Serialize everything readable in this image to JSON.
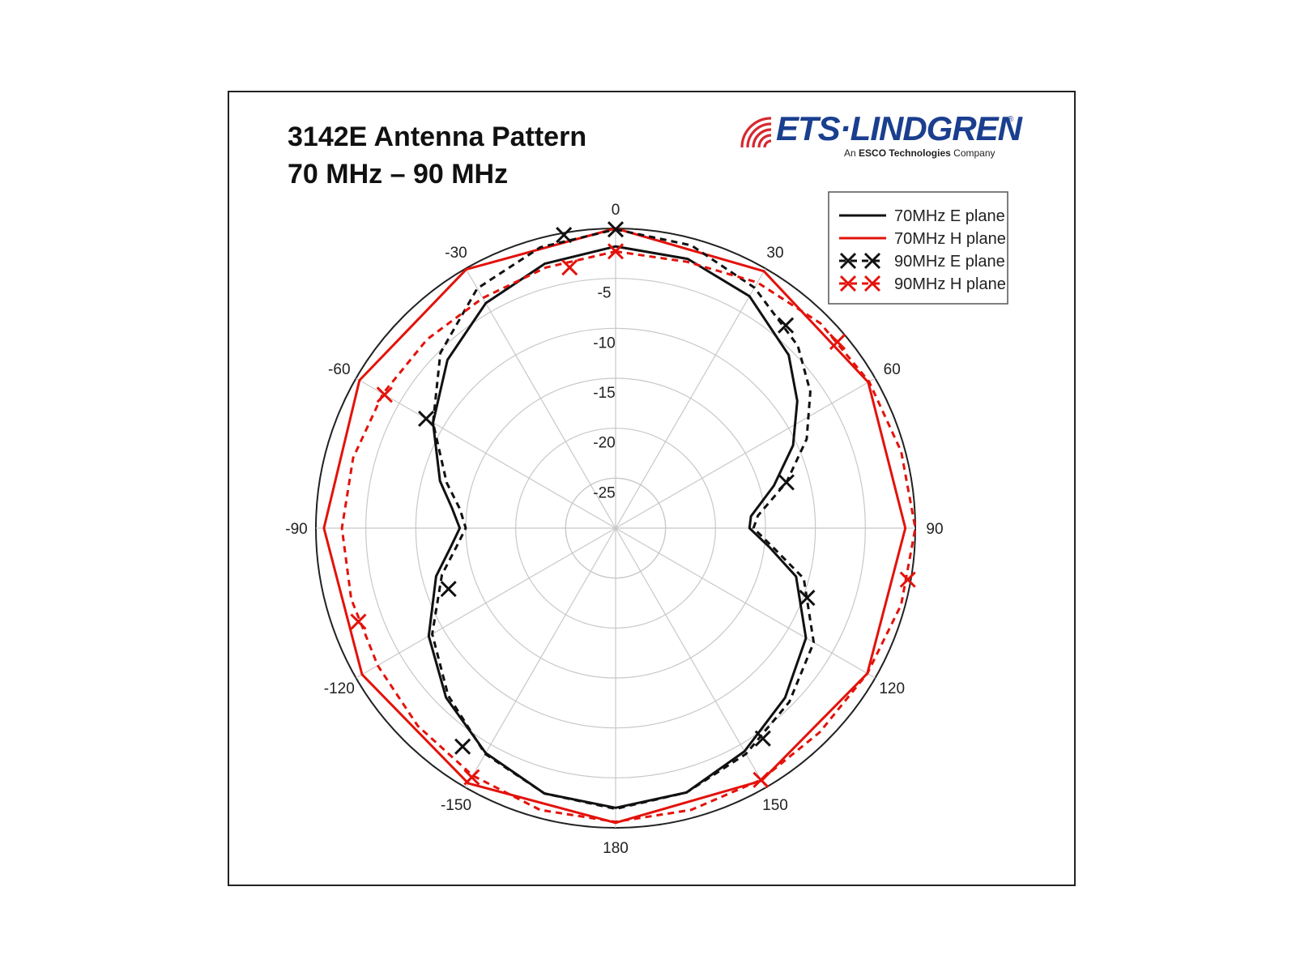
{
  "header": {
    "title_line1": "3142E Antenna Pattern",
    "title_line2": "70 MHz – 90 MHz"
  },
  "logo": {
    "brand": "ETS·LINDGREN",
    "registered": "®",
    "tagline_prefix": "An ",
    "tagline_bold": "ESCO Technologies",
    "tagline_suffix": " Company",
    "color": "#1b3f8f",
    "wave_color": "#d7282f"
  },
  "chart_data": {
    "type": "polar",
    "angle_unit": "degrees",
    "angle_zero": "top",
    "angle_direction": "clockwise",
    "angle_ticks": [
      0,
      30,
      60,
      90,
      120,
      150,
      180,
      -150,
      -120,
      -90,
      -60,
      -30
    ],
    "radial_ticks": [
      -5,
      -10,
      -15,
      -20,
      -25
    ],
    "radial_range": [
      -30,
      0
    ],
    "grid": true,
    "legend_position": "top-right",
    "series": [
      {
        "name": "70MHz E plane",
        "color": "#111111",
        "style": "solid",
        "marker": "none",
        "points": [
          [
            0,
            -1.8
          ],
          [
            15,
            -2.1
          ],
          [
            30,
            -3.2
          ],
          [
            45,
            -5.5
          ],
          [
            55,
            -7.8
          ],
          [
            65,
            -10.4
          ],
          [
            75,
            -13.6
          ],
          [
            85,
            -16.4
          ],
          [
            90,
            -16.6
          ],
          [
            97,
            -14.5
          ],
          [
            105,
            -11.3
          ],
          [
            120,
            -8.0
          ],
          [
            135,
            -6.0
          ],
          [
            150,
            -4.2
          ],
          [
            165,
            -2.6
          ],
          [
            180,
            -2.0
          ],
          [
            195,
            -2.5
          ],
          [
            210,
            -4.0
          ],
          [
            225,
            -6.0
          ],
          [
            240,
            -8.4
          ],
          [
            255,
            -11.4
          ],
          [
            263,
            -13.3
          ],
          [
            270,
            -14.4
          ],
          [
            277,
            -13.5
          ],
          [
            285,
            -11.8
          ],
          [
            300,
            -8.9
          ],
          [
            315,
            -6.2
          ],
          [
            330,
            -4.0
          ],
          [
            345,
            -2.6
          ],
          [
            360,
            -1.8
          ]
        ]
      },
      {
        "name": "70MHz H plane",
        "color": "#e3120b",
        "style": "solid",
        "marker": "none",
        "points": [
          [
            0,
            0.0
          ],
          [
            30,
            -0.3
          ],
          [
            60,
            -0.8
          ],
          [
            90,
            -1.0
          ],
          [
            120,
            -0.9
          ],
          [
            150,
            -0.8
          ],
          [
            180,
            -0.5
          ],
          [
            210,
            -0.5
          ],
          [
            240,
            -0.7
          ],
          [
            270,
            -0.8
          ],
          [
            300,
            -0.4
          ],
          [
            330,
            -0.1
          ],
          [
            360,
            0.0
          ]
        ]
      },
      {
        "name": "90MHz E plane",
        "color": "#111111",
        "style": "dashed",
        "marker": "x",
        "points": [
          [
            0,
            -0.1
          ],
          [
            15,
            -0.7
          ],
          [
            30,
            -2.2
          ],
          [
            45,
            -4.2
          ],
          [
            55,
            -6.2
          ],
          [
            65,
            -8.9
          ],
          [
            75,
            -12.3
          ],
          [
            85,
            -15.7
          ],
          [
            90,
            -16.2
          ],
          [
            97,
            -14.1
          ],
          [
            105,
            -10.5
          ],
          [
            120,
            -7.1
          ],
          [
            135,
            -5.4
          ],
          [
            150,
            -3.9
          ],
          [
            165,
            -2.6
          ],
          [
            180,
            -1.9
          ],
          [
            195,
            -2.5
          ],
          [
            210,
            -3.9
          ],
          [
            225,
            -6.3
          ],
          [
            240,
            -8.8
          ],
          [
            255,
            -12.0
          ],
          [
            263,
            -13.9
          ],
          [
            270,
            -15.0
          ],
          [
            277,
            -14.3
          ],
          [
            285,
            -12.5
          ],
          [
            300,
            -8.9
          ],
          [
            315,
            -5.2
          ],
          [
            330,
            -2.3
          ],
          [
            345,
            -0.9
          ],
          [
            360,
            -0.1
          ]
        ]
      },
      {
        "name": "90MHz H plane",
        "color": "#e3120b",
        "style": "dashed",
        "marker": "x",
        "points": [
          [
            0,
            -2.3
          ],
          [
            15,
            -2.4
          ],
          [
            30,
            -1.6
          ],
          [
            45,
            -1.0
          ],
          [
            60,
            -0.7
          ],
          [
            75,
            -0.4
          ],
          [
            90,
            0.0
          ],
          [
            105,
            -0.4
          ],
          [
            120,
            -0.9
          ],
          [
            135,
            -1.1
          ],
          [
            150,
            -0.9
          ],
          [
            165,
            -0.8
          ],
          [
            180,
            -0.6
          ],
          [
            195,
            -0.8
          ],
          [
            210,
            -1.4
          ],
          [
            225,
            -2.0
          ],
          [
            240,
            -2.5
          ],
          [
            255,
            -2.6
          ],
          [
            270,
            -2.6
          ],
          [
            285,
            -2.8
          ],
          [
            300,
            -3.1
          ],
          [
            315,
            -3.3
          ],
          [
            330,
            -3.4
          ],
          [
            345,
            -3.0
          ],
          [
            360,
            -2.3
          ]
        ]
      }
    ],
    "markers": {
      "90MHz E plane": [
        [
          0,
          -0.1
        ],
        [
          -10,
          -0.2
        ],
        [
          40,
          -3.5
        ],
        [
          75,
          -12.3
        ],
        [
          110,
          -9.6
        ],
        [
          145,
          -4.3
        ],
        [
          -145,
          -3.3
        ],
        [
          -110,
          -12.2
        ],
        [
          -60,
          -8.1
        ]
      ],
      "90MHz H plane": [
        [
          0,
          -2.3
        ],
        [
          -10,
          -3.5
        ],
        [
          50,
          -1.0
        ],
        [
          100,
          -0.3
        ],
        [
          150,
          -0.9
        ],
        [
          -150,
          -1.2
        ],
        [
          -110,
          -2.6
        ],
        [
          -60,
          -3.3
        ]
      ]
    }
  }
}
